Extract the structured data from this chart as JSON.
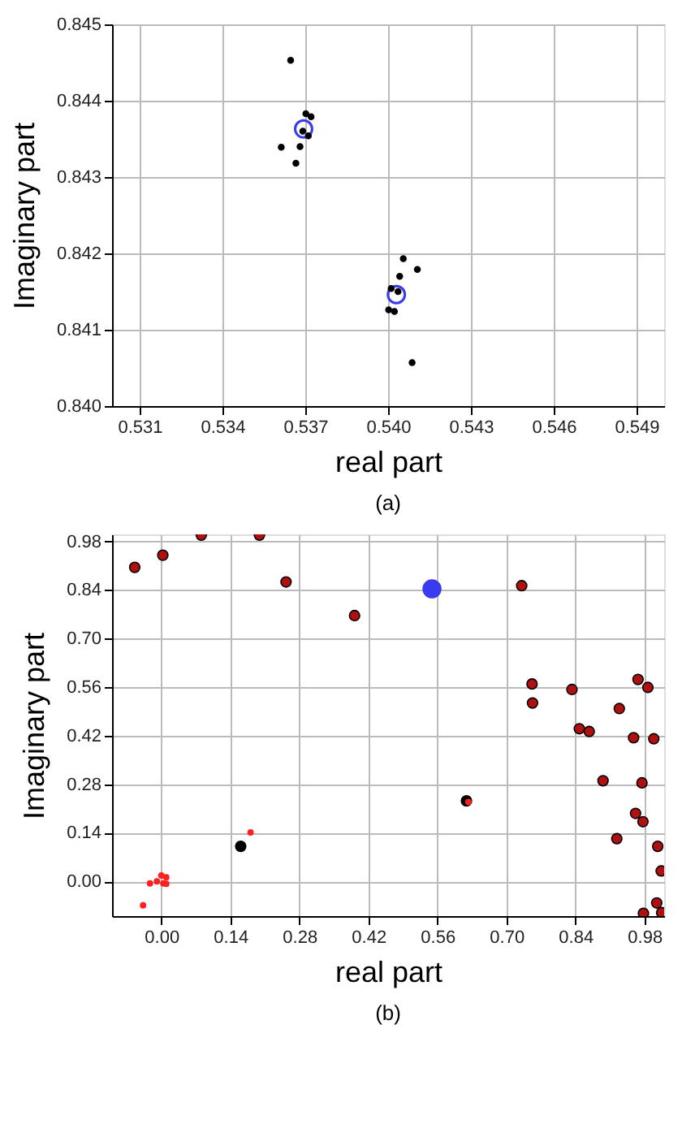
{
  "chart_data": [
    {
      "type": "scatter",
      "xlabel": "real part",
      "ylabel": "Imaginary part",
      "annotations": [
        "(a)"
      ],
      "grid": true,
      "marker": "circle",
      "xlim": [
        0.53,
        0.55
      ],
      "ylim": [
        0.84,
        0.845
      ],
      "xticks": [
        0.531,
        0.534,
        0.537,
        {
          "value": 0.54,
          "label": "0.540"
        },
        0.543,
        0.546,
        0.549
      ],
      "yticks": [
        {
          "value": 0.84,
          "label": "0.840"
        },
        0.841,
        0.842,
        0.843,
        0.844,
        0.845
      ],
      "series": [
        {
          "color": "#3a3aee",
          "x": [
            0.53694,
            0.5403
          ],
          "values": [
            0.84363,
            0.84146
          ]
        },
        {
          "color": "#000000",
          "x": [
            0.53647,
            0.53702,
            0.53721,
            0.53691,
            0.53711,
            0.53613,
            0.53681,
            0.53666,
            0.54055,
            0.54106,
            0.54042,
            0.54011,
            0.54036,
            0.54002,
            0.54023,
            0.54087
          ],
          "values": [
            0.84453,
            0.84383,
            0.84379,
            0.8436,
            0.84354,
            0.84339,
            0.8434,
            0.84318,
            0.84193,
            0.84179,
            0.8417,
            0.84154,
            0.8415,
            0.84126,
            0.84124,
            0.84057
          ]
        }
      ]
    },
    {
      "type": "scatter",
      "xlabel": "real part",
      "ylabel": "Imaginary part",
      "annotations": [
        "(b)"
      ],
      "grid": true,
      "marker": "circle",
      "xlim": [
        -0.1,
        1.02
      ],
      "ylim": [
        -0.1,
        1.0
      ],
      "xticks": [
        {
          "value": 0,
          "label": "0.00"
        },
        0.14,
        0.28,
        0.42,
        0.56,
        {
          "value": 0.7,
          "label": "0.70"
        },
        0.84,
        0.98
      ],
      "yticks": [
        {
          "value": 0,
          "label": "0.00"
        },
        0.14,
        0.28,
        0.42,
        0.56,
        {
          "value": 0.7,
          "label": "0.70"
        },
        0.84,
        0.98
      ],
      "series": [
        {
          "color": "#b01010",
          "x": [
            -0.054,
            0.003,
            0.081,
            0.199,
            0.253,
            0.392,
            0.731,
            0.752,
            0.753,
            0.833,
            0.929,
            0.967,
            0.987,
            0.848,
            0.868,
            0.958,
            0.999,
            0.896,
            0.975,
            0.962,
            0.977,
            0.924,
            1.007,
            1.014,
            1.005,
            0.978,
            1.015
          ],
          "values": [
            0.905,
            0.94,
            0.998,
            0.998,
            0.863,
            0.766,
            0.852,
            0.569,
            0.514,
            0.553,
            0.498,
            0.582,
            0.559,
            0.44,
            0.432,
            0.414,
            0.411,
            0.29,
            0.284,
            0.196,
            0.172,
            0.123,
            0.101,
            0.03,
            -0.062,
            -0.092,
            -0.09
          ]
        },
        {
          "color": "#000000",
          "x": [
            0.161,
            0.619
          ],
          "values": [
            0.101,
            0.232
          ]
        },
        {
          "color": "#ff2020",
          "x": [
            0.623,
            0.181,
            -0.037,
            0.0,
            0.01,
            -0.023,
            -0.009,
            0.004,
            0.01
          ],
          "values": [
            0.229,
            0.141,
            -0.069,
            0.017,
            0.012,
            -0.006,
            0.0,
            -0.006,
            -0.007
          ]
        },
        {
          "color": "#3a3aee",
          "x": [
            0.549
          ],
          "values": [
            0.843
          ]
        }
      ]
    }
  ]
}
